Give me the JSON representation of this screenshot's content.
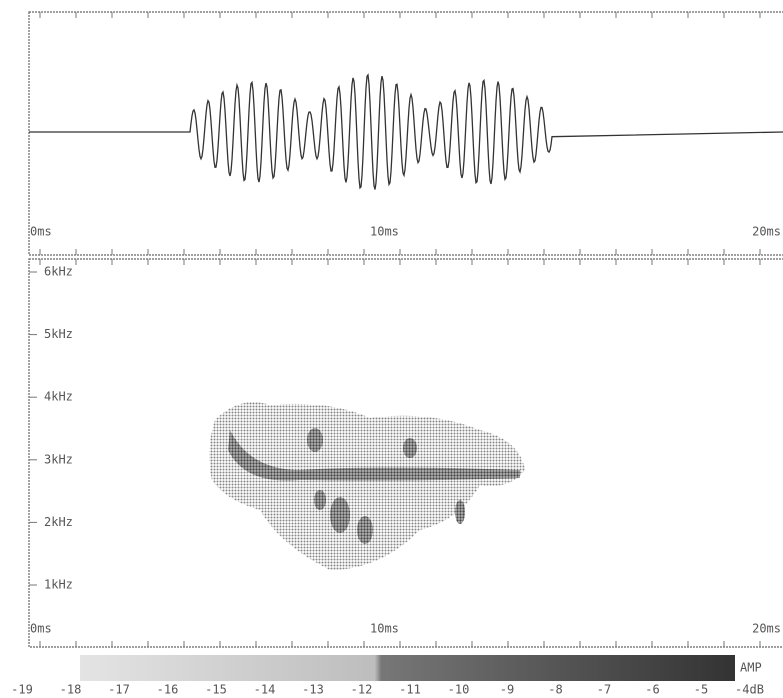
{
  "waveform": {
    "x_labels": [
      "0ms",
      "10ms",
      "20ms"
    ]
  },
  "spectrogram": {
    "y_labels": [
      "6kHz",
      "5kHz",
      "4kHz",
      "3kHz",
      "2kHz",
      "1kHz"
    ],
    "x_labels": [
      "0ms",
      "10ms",
      "20ms"
    ]
  },
  "scale": {
    "title": "AMP",
    "labels": [
      "-19",
      "-18",
      "-17",
      "-16",
      "-15",
      "-14",
      "-13",
      "-12",
      "-11",
      "-10",
      "-9",
      "-8",
      "-7",
      "-6",
      "-5",
      "-4dB"
    ]
  }
}
